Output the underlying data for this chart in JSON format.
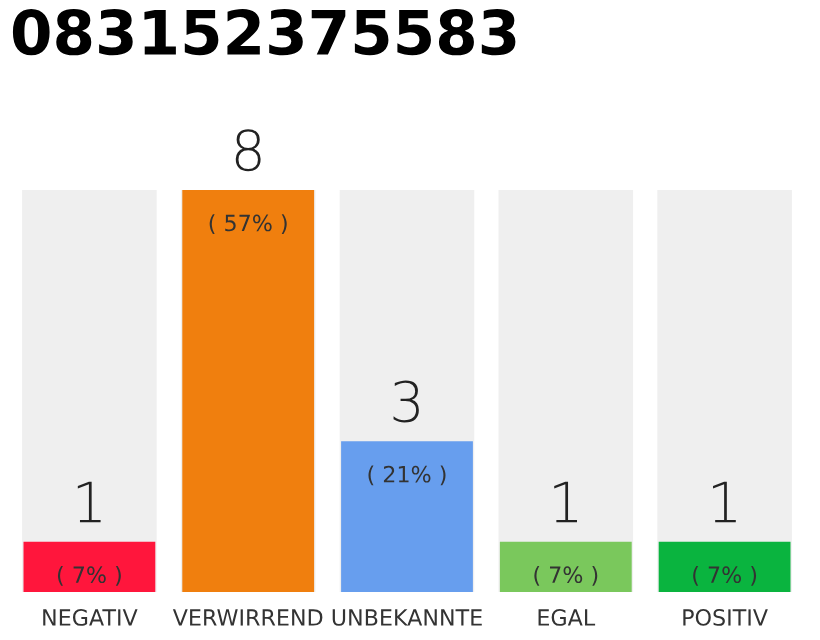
{
  "chart_data": {
    "type": "bar",
    "title": "083152375583",
    "categories": [
      "NEGATIV",
      "VERWIRREND",
      "UNBEKANNTE",
      "EGAL",
      "POSITIV"
    ],
    "values": [
      1,
      8,
      3,
      1,
      1
    ],
    "colors": [
      "#ff163c",
      "#f07f0e",
      "#679eee",
      "#7ac85c",
      "#0ab43f"
    ],
    "data_labels": true,
    "annotations": [
      {
        "text": "( 7% )",
        "x": "NEGATIV",
        "y": 1
      },
      {
        "text": "( 57% )",
        "x": "VERWIRREND",
        "y": 8
      },
      {
        "text": "( 21% )",
        "x": "UNBEKANNTE",
        "y": 3
      },
      {
        "text": "( 7% )",
        "x": "EGAL",
        "y": 1
      },
      {
        "text": "( 7% )",
        "x": "POSITIV",
        "y": 1
      }
    ],
    "grid": false,
    "legend": false
  }
}
